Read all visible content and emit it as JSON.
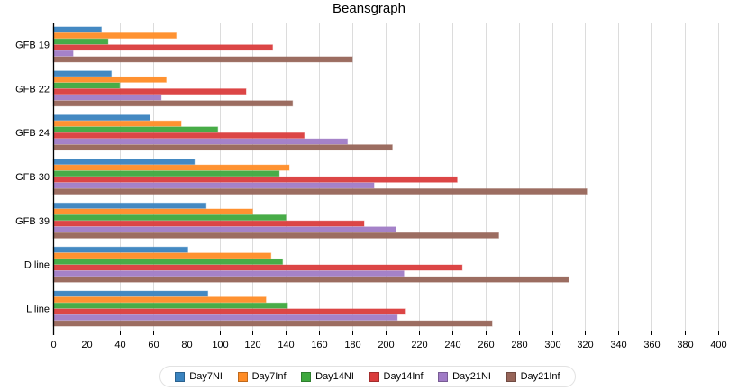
{
  "chart_data": {
    "type": "bar",
    "orientation": "horizontal",
    "title": "Beansgraph",
    "xlabel": "",
    "ylabel": "",
    "xlim": [
      0,
      400
    ],
    "x_ticks": [
      0,
      20,
      40,
      60,
      80,
      100,
      120,
      140,
      160,
      180,
      200,
      220,
      240,
      260,
      280,
      300,
      320,
      340,
      360,
      380,
      400
    ],
    "grid": "vertical",
    "legend_position": "bottom-center",
    "categories": [
      "GFB 19",
      "GFB 22",
      "GFB 24",
      "GFB 30",
      "GFB 39",
      "D line",
      "L line"
    ],
    "series": [
      {
        "name": "Day7NI",
        "color": "#3a83bf",
        "values": [
          29,
          35,
          58,
          85,
          92,
          81,
          93
        ]
      },
      {
        "name": "Day7Inf",
        "color": "#ff8c26",
        "values": [
          74,
          68,
          77,
          142,
          120,
          131,
          128
        ]
      },
      {
        "name": "Day14NI",
        "color": "#3ea83e",
        "values": [
          33,
          40,
          99,
          136,
          140,
          138,
          141
        ]
      },
      {
        "name": "Day14Inf",
        "color": "#da3c3c",
        "values": [
          132,
          116,
          151,
          243,
          187,
          246,
          212
        ]
      },
      {
        "name": "Day21NI",
        "color": "#a07bc6",
        "values": [
          12,
          65,
          177,
          193,
          206,
          211,
          207
        ]
      },
      {
        "name": "Day21Inf",
        "color": "#976559",
        "values": [
          180,
          144,
          204,
          321,
          268,
          310,
          264
        ]
      }
    ]
  }
}
